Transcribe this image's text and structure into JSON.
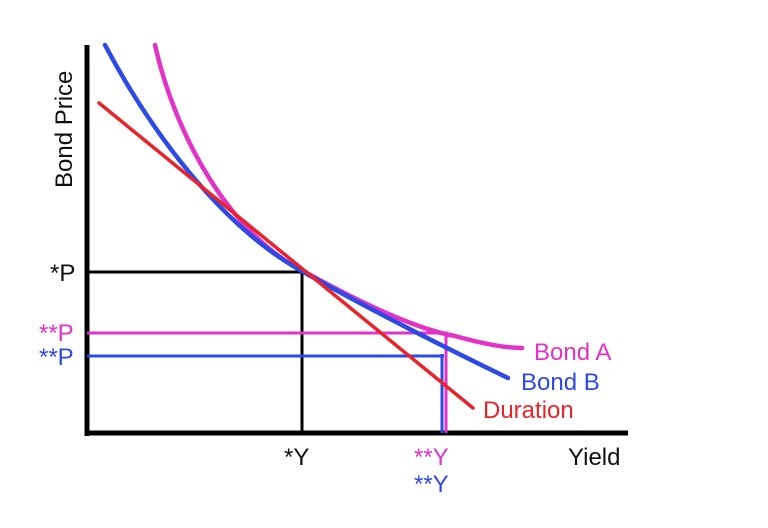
{
  "axes": {
    "y_label": "Bond Price",
    "x_label": "Yield"
  },
  "ticks": {
    "p_star": "*P",
    "p_a": "**P",
    "p_b": "**P",
    "y_star": "*Y",
    "y_a": "**Y",
    "y_b": "**Y"
  },
  "curves": {
    "bond_a": "Bond A",
    "bond_b": "Bond B",
    "duration": "Duration"
  },
  "colors": {
    "axis": "#000000",
    "bond_a": "#e332c8",
    "bond_b": "#2d49e6",
    "duration": "#e8242a",
    "black_guides": "#000000"
  }
}
